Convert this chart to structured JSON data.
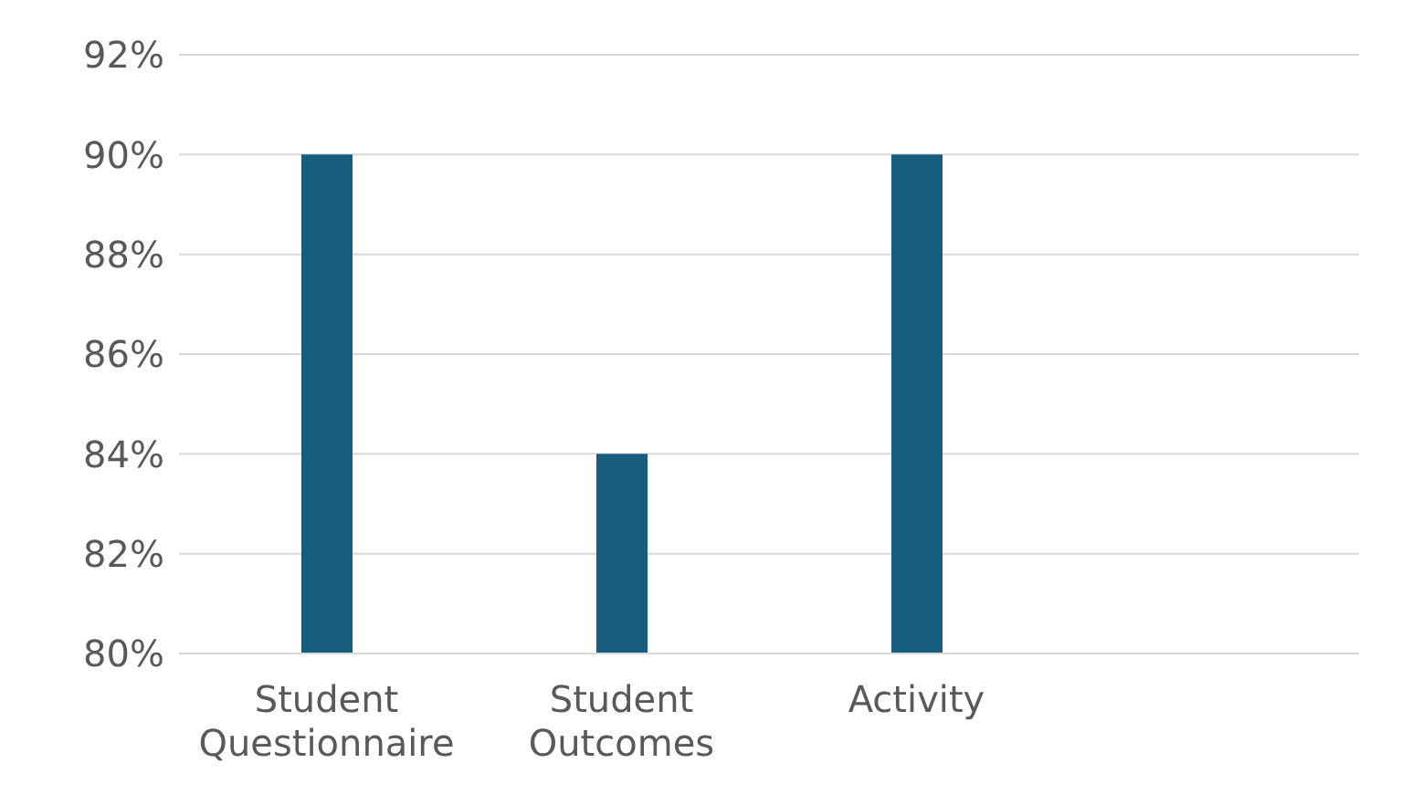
{
  "chart_data": {
    "type": "bar",
    "categories": [
      "Student Questionnaire",
      "Student Outcomes",
      "Activity",
      null
    ],
    "values": [
      90,
      84,
      90,
      null
    ],
    "color": "#175e7e",
    "ylim": [
      80,
      92
    ],
    "yticks": [
      {
        "value": 80,
        "label": "80%"
      },
      {
        "value": 82,
        "label": "82%"
      },
      {
        "value": 84,
        "label": "84%"
      },
      {
        "value": 86,
        "label": "86%"
      },
      {
        "value": 88,
        "label": "88%"
      },
      {
        "value": 90,
        "label": "90%"
      },
      {
        "value": 92,
        "label": "92%"
      }
    ],
    "grid": "y"
  }
}
